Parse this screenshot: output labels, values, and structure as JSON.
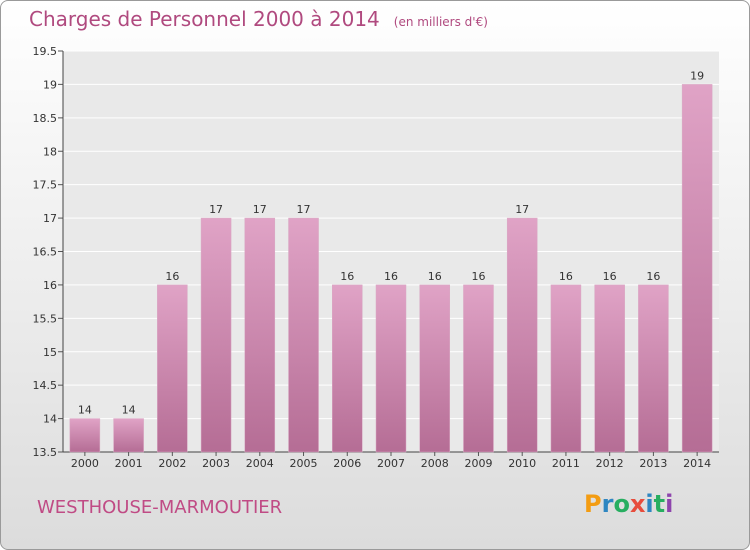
{
  "chart_data": {
    "type": "bar",
    "title": "Charges de Personnel 2000 à 2014",
    "subtitle": "(en milliers d'€)",
    "categories": [
      "2000",
      "2001",
      "2002",
      "2003",
      "2004",
      "2005",
      "2006",
      "2007",
      "2008",
      "2009",
      "2010",
      "2011",
      "2012",
      "2013",
      "2014"
    ],
    "values": [
      14,
      14,
      16,
      17,
      17,
      17,
      16,
      16,
      16,
      16,
      17,
      16,
      16,
      16,
      19
    ],
    "data_labels": [
      "14",
      "14",
      "16",
      "17",
      "17",
      "17",
      "16",
      "16",
      "16",
      "16",
      "17",
      "16",
      "16",
      "16",
      "19"
    ],
    "ylim": [
      13.5,
      19.5
    ],
    "yticks": [
      13.5,
      14,
      14.5,
      15,
      15.5,
      16,
      16.5,
      17,
      17.5,
      18,
      18.5,
      19,
      19.5
    ],
    "ytick_labels": [
      "13.5",
      "14",
      "14.5",
      "15",
      "15.5",
      "16",
      "16.5",
      "17",
      "17.5",
      "18",
      "18.5",
      "19",
      "19.5"
    ],
    "xlabel": "",
    "ylabel": "",
    "grid": true,
    "legend": "none",
    "bar_color": "#e0a3c6",
    "bar_color_dark": "#b56d95"
  },
  "footer": {
    "town": "WESTHOUSE-MARMOUTIER",
    "logo_text": "Proxiti"
  },
  "colors": {
    "title": "#b04a7f",
    "logo_letters": [
      "#f39c12",
      "#2e86c1",
      "#27ae60",
      "#e74c3c",
      "#2e86c1",
      "#27ae60",
      "#8e44ad"
    ]
  }
}
